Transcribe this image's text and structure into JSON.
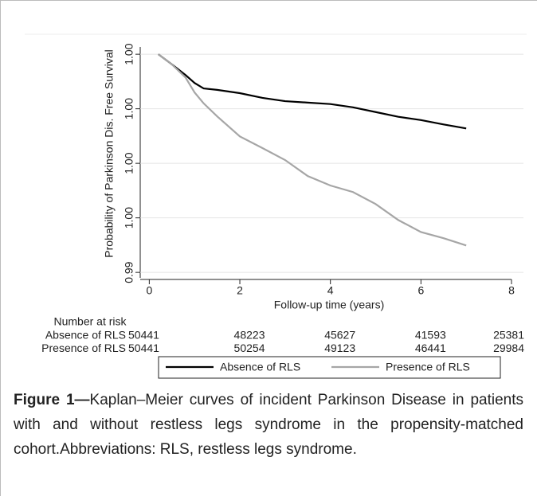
{
  "chart_data": {
    "type": "line",
    "ylabel": "Probability of Parkinson Dis. Free Survival",
    "xlabel": "Follow-up time (years)",
    "xlim": [
      -0.2,
      8
    ],
    "xticks": [
      0,
      2,
      4,
      6,
      8
    ],
    "ylim": [
      0.99385,
      1.0002
    ],
    "yticks": [
      {
        "value": 0.994,
        "label": "0.99"
      },
      {
        "value": 0.9955,
        "label": "1.00"
      },
      {
        "value": 0.997,
        "label": "1.00"
      },
      {
        "value": 0.9985,
        "label": "1.00"
      },
      {
        "value": 1.0,
        "label": "1.00"
      }
    ],
    "grid": true,
    "x": [
      0.2,
      0.5,
      0.8,
      1.0,
      1.2,
      1.5,
      2.0,
      2.5,
      3.0,
      3.5,
      4.0,
      4.5,
      5.0,
      5.5,
      6.0,
      6.5,
      7.0
    ],
    "series": [
      {
        "name": "Absence of RLS",
        "color": "#000000",
        "values": [
          1.0,
          0.99972,
          0.99943,
          0.99921,
          0.99906,
          0.99902,
          0.99893,
          0.9988,
          0.99871,
          0.99867,
          0.99863,
          0.99854,
          0.99841,
          0.99828,
          0.99819,
          0.99807,
          0.99796
        ]
      },
      {
        "name": "Presence of RLS",
        "color": "#a6a6a6",
        "values": [
          1.0,
          0.99972,
          0.99936,
          0.99895,
          0.99865,
          0.99829,
          0.99774,
          0.99742,
          0.99709,
          0.99665,
          0.99639,
          0.99621,
          0.99588,
          0.99544,
          0.99511,
          0.99494,
          0.99474
        ]
      }
    ],
    "legend": "bottom",
    "risk_table": {
      "title": "Number at risk",
      "rows": [
        {
          "name": "Absence of RLS",
          "values": [
            50441,
            48223,
            45627,
            41593,
            25381
          ]
        },
        {
          "name": "Presence of RLS",
          "values": [
            50441,
            50254,
            49123,
            46441,
            29984
          ]
        }
      ]
    }
  },
  "caption": {
    "label": "Figure 1—",
    "text": "Kaplan–Meier curves of incident Parkinson Disease in patients with and without restless legs syndrome in the propensity-matched cohort.Abbreviations: RLS, restless legs syndrome."
  }
}
